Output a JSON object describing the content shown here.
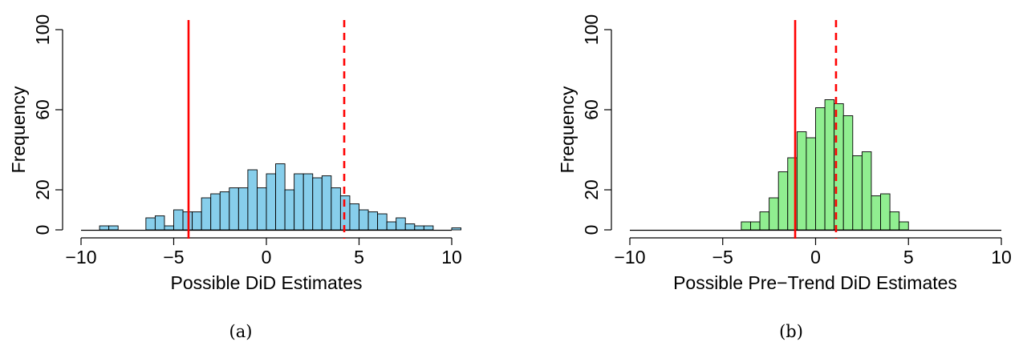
{
  "chart_data": [
    {
      "type": "bar",
      "panel_caption": "(a)",
      "xlabel": "Possible DiD Estimates",
      "ylabel": "Frequency",
      "title": "",
      "xlim": [
        -10,
        10
      ],
      "ylim": [
        0,
        100
      ],
      "xticks": [
        "−10",
        "−5",
        "0",
        "5",
        "10"
      ],
      "yticks": [
        "0",
        "20",
        "60",
        "100"
      ],
      "bar_color": "#87CEEB",
      "bin_width": 0.5,
      "bin_start": -9,
      "values": [
        2,
        2,
        0,
        0,
        0,
        6,
        7,
        2,
        10,
        9,
        9,
        16,
        18,
        19,
        21,
        21,
        30,
        21,
        28,
        33,
        20,
        28,
        28,
        26,
        27,
        21,
        17,
        13,
        10,
        9,
        8,
        4,
        6,
        3,
        2,
        2,
        0,
        0,
        1
      ],
      "solid_line_x": -4.2,
      "dashed_line_x": 4.2,
      "line_color": "#ff0000"
    },
    {
      "type": "bar",
      "panel_caption": "(b)",
      "xlabel": "Possible Pre−Trend DiD Estimates",
      "ylabel": "Frequency",
      "title": "",
      "xlim": [
        -10,
        10
      ],
      "ylim": [
        0,
        100
      ],
      "xticks": [
        "−10",
        "−5",
        "0",
        "5",
        "10"
      ],
      "yticks": [
        "0",
        "20",
        "60",
        "100"
      ],
      "bar_color": "#90EE90",
      "bin_width": 0.5,
      "bin_start": -4,
      "values": [
        4,
        4,
        9,
        16,
        29,
        36,
        49,
        46,
        61,
        65,
        63,
        57,
        37,
        39,
        17,
        18,
        9,
        4
      ],
      "solid_line_x": -1.1,
      "dashed_line_x": 1.1,
      "line_color": "#ff0000"
    }
  ]
}
